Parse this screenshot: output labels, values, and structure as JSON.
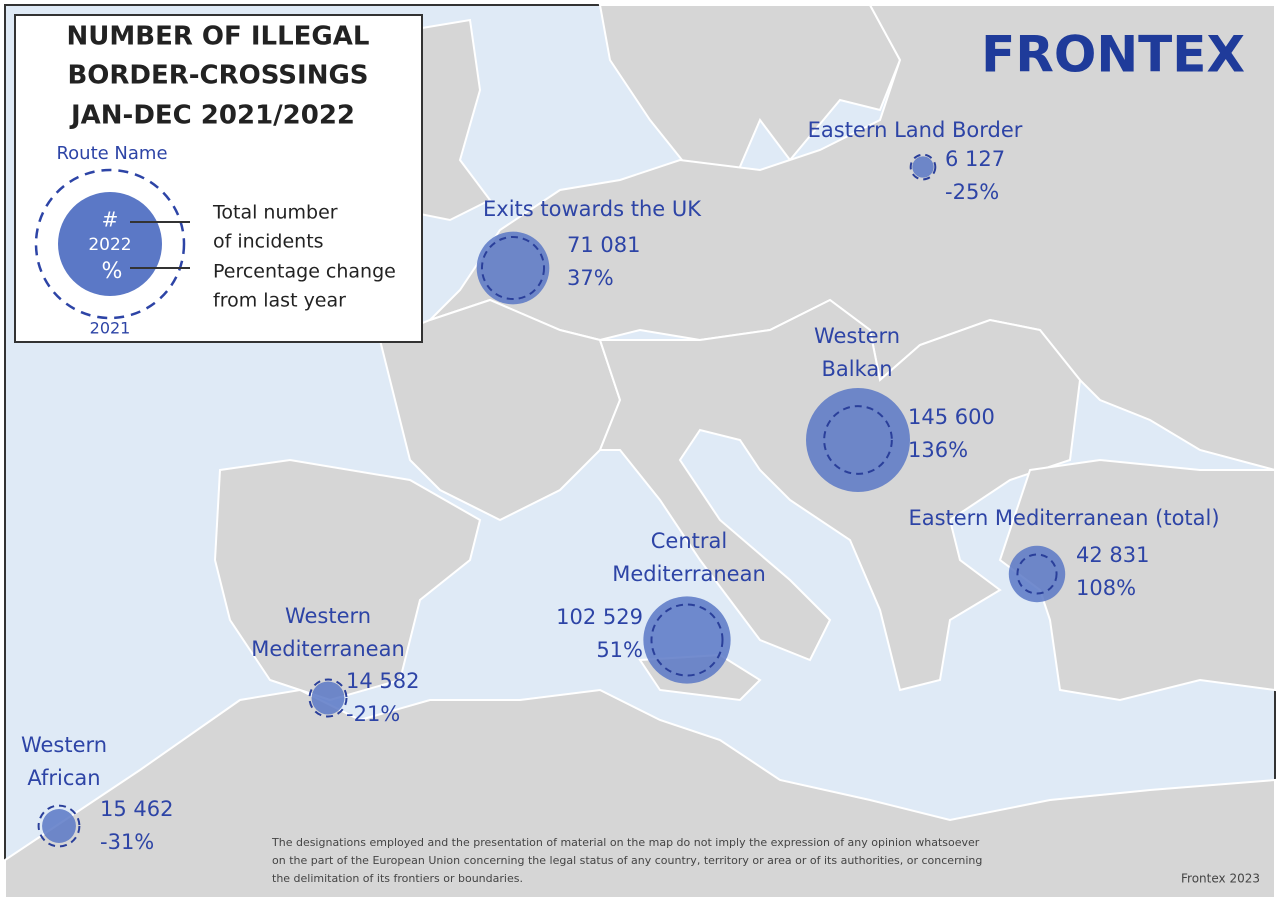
{
  "header": {
    "title_lines": [
      "NUMBER OF ILLEGAL",
      "BORDER-CROSSINGS",
      "JAN-DEC 2021/2022"
    ],
    "logo": "FRONTEX"
  },
  "legend": {
    "route_name": "Route Name",
    "count_symbol": "#",
    "year_current": "2022",
    "change_symbol": "%",
    "year_previous": "2021",
    "count_desc_lines": [
      "Total number",
      "of incidents"
    ],
    "change_desc_lines": [
      "Percentage change",
      "from last year"
    ]
  },
  "routes": [
    {
      "name_lines": [
        "Eastern Land Border"
      ],
      "count": {
        "value": 6127,
        "label": "6 127"
      },
      "change": {
        "value": -25,
        "label": "-25%"
      }
    },
    {
      "name_lines": [
        "Exits towards the UK"
      ],
      "count": {
        "value": 71081,
        "label": "71 081"
      },
      "change": {
        "value": 37,
        "label": "37%"
      }
    },
    {
      "name_lines": [
        "Western",
        "Balkan"
      ],
      "count": {
        "value": 145600,
        "label": "145 600"
      },
      "change": {
        "value": 136,
        "label": "136%"
      }
    },
    {
      "name_lines": [
        "Eastern Mediterranean (total)"
      ],
      "count": {
        "value": 42831,
        "label": "42 831"
      },
      "change": {
        "value": 108,
        "label": "108%"
      }
    },
    {
      "name_lines": [
        "Central",
        "Mediterranean"
      ],
      "count": {
        "value": 102529,
        "label": "102 529"
      },
      "change": {
        "value": 51,
        "label": "51%"
      }
    },
    {
      "name_lines": [
        "Western",
        "Mediterranean"
      ],
      "count": {
        "value": 14582,
        "label": "14 582"
      },
      "change": {
        "value": -21,
        "label": "-21%"
      }
    },
    {
      "name_lines": [
        "Western",
        "African"
      ],
      "count": {
        "value": 15462,
        "label": "15 462"
      },
      "change": {
        "value": -31,
        "label": "-31%"
      }
    }
  ],
  "footer": {
    "disclaimer_lines": [
      "The designations employed and the presentation of material on the map do not imply the expression of any opinion whatsoever",
      "on the part of the European Union concerning the legal status of any country, territory or area or of its authorities, or concerning",
      "the delimitation of its frontiers or boundaries."
    ],
    "credit": "Frontex 2023"
  }
}
